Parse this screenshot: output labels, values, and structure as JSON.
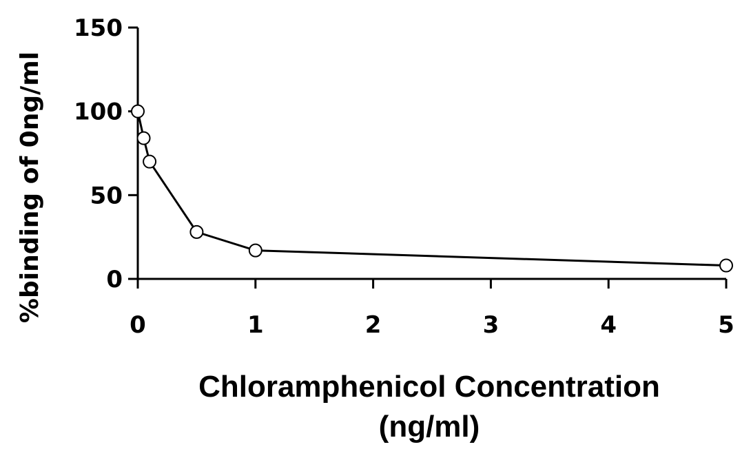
{
  "chart_data": {
    "type": "line",
    "title": "",
    "xlabel_line1": "Chloramphenicol Concentration",
    "xlabel_line2": "(ng/ml)",
    "ylabel": "%binding of 0ng/ml",
    "xlim": [
      0,
      5
    ],
    "ylim": [
      0,
      150
    ],
    "x_ticks": [
      0,
      1,
      2,
      3,
      4,
      5
    ],
    "y_ticks": [
      0,
      50,
      100,
      150
    ],
    "grid": false,
    "legend": "none",
    "series": [
      {
        "x": [
          0,
          0.05,
          0.1,
          0.5,
          1,
          5
        ],
        "y": [
          100,
          84,
          70,
          28,
          17,
          8
        ],
        "color": "#000000",
        "marker": "open-circle"
      }
    ]
  }
}
